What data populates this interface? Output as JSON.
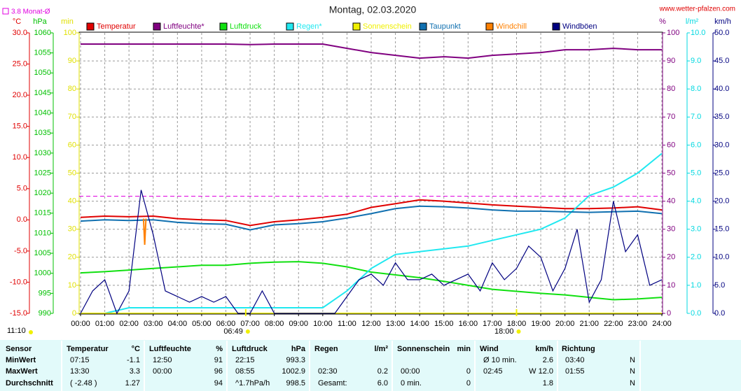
{
  "chart_data": {
    "type": "line",
    "title": "Montag, 02.03.2020",
    "source": "www.wetter-pfalzen.com",
    "grid": true,
    "reference": {
      "label": "3.8 Monat-Ø",
      "value": 3.8,
      "axis": 0,
      "color": "#e000e0"
    },
    "axes": [
      {
        "label": "°C",
        "color": "#e00000",
        "lim": [
          -15,
          30
        ],
        "ticks": [
          {
            "value": 30,
            "label": "30.0"
          },
          {
            "value": 25,
            "label": "25.0"
          },
          {
            "value": 20,
            "label": "20.0"
          },
          {
            "value": 15,
            "label": "15.0"
          },
          {
            "value": 10,
            "label": "10.0"
          },
          {
            "value": 5,
            "label": "5.0"
          },
          {
            "value": 0,
            "label": "0.0"
          },
          {
            "value": -5,
            "label": "-5.0"
          },
          {
            "value": -10,
            "label": "-10.0"
          },
          {
            "value": -15,
            "label": "-15.0"
          }
        ]
      },
      {
        "label": "hPa",
        "color": "#00c000",
        "lim": [
          990,
          1060
        ],
        "ticks": [
          1060,
          1055,
          1050,
          1045,
          1040,
          1035,
          1030,
          1025,
          1020,
          1015,
          1010,
          1005,
          1000,
          995,
          990
        ]
      },
      {
        "label": "min",
        "color": "#e0e000",
        "lim": [
          0,
          100
        ],
        "ticks": [
          100,
          90,
          80,
          70,
          60,
          50,
          40,
          30,
          20,
          10,
          0
        ]
      },
      {
        "label": "%",
        "color": "#800080",
        "lim": [
          0,
          100
        ],
        "ticks": [
          100,
          90,
          80,
          70,
          60,
          50,
          40,
          30,
          20,
          10,
          0
        ]
      },
      {
        "label": "l/m²",
        "color": "#00d8e0",
        "lim": [
          0,
          10
        ],
        "ticks": [
          {
            "value": 10,
            "label": "10.0"
          },
          {
            "value": 9,
            "label": "9.0"
          },
          {
            "value": 8,
            "label": "8.0"
          },
          {
            "value": 7,
            "label": "7.0"
          },
          {
            "value": 6,
            "label": "6.0"
          },
          {
            "value": 5,
            "label": "5.0"
          },
          {
            "value": 4,
            "label": "4.0"
          },
          {
            "value": 3,
            "label": "3.0"
          },
          {
            "value": 2,
            "label": "2.0"
          },
          {
            "value": 1,
            "label": "1.0"
          },
          {
            "value": 0,
            "label": "0.0"
          }
        ]
      },
      {
        "label": "km/h",
        "color": "#000080",
        "lim": [
          0,
          50
        ],
        "ticks": [
          {
            "value": 50,
            "label": "50.0"
          },
          {
            "value": 45,
            "label": "45.0"
          },
          {
            "value": 40,
            "label": "40.0"
          },
          {
            "value": 35,
            "label": "35.0"
          },
          {
            "value": 30,
            "label": "30.0"
          },
          {
            "value": 25,
            "label": "25.0"
          },
          {
            "value": 20,
            "label": "20.0"
          },
          {
            "value": 15,
            "label": "15.0"
          },
          {
            "value": 10,
            "label": "10.0"
          },
          {
            "value": 5,
            "label": "5.0"
          },
          {
            "value": 0,
            "label": "0.0"
          }
        ]
      }
    ],
    "xlim": [
      0,
      24
    ],
    "xticks": [
      {
        "value": 0,
        "label": "00:00"
      },
      {
        "value": 1,
        "label": "01:00"
      },
      {
        "value": 2,
        "label": "02:00"
      },
      {
        "value": 3,
        "label": "03:00"
      },
      {
        "value": 4,
        "label": "04:00"
      },
      {
        "value": 5,
        "label": "05:00"
      },
      {
        "value": 6,
        "label": "06:00"
      },
      {
        "value": 7,
        "label": "07:00"
      },
      {
        "value": 8,
        "label": "08:00"
      },
      {
        "value": 9,
        "label": "09:00"
      },
      {
        "value": 10,
        "label": "10:00"
      },
      {
        "value": 11,
        "label": "11:00"
      },
      {
        "value": 12,
        "label": "12:00"
      },
      {
        "value": 13,
        "label": "13:00"
      },
      {
        "value": 14,
        "label": "14:00"
      },
      {
        "value": 15,
        "label": "15:00"
      },
      {
        "value": 16,
        "label": "16:00"
      },
      {
        "value": 17,
        "label": "17:00"
      },
      {
        "value": 18,
        "label": "18:00"
      },
      {
        "value": 19,
        "label": "19:00"
      },
      {
        "value": 20,
        "label": "20:00"
      },
      {
        "value": 21,
        "label": "21:00"
      },
      {
        "value": 22,
        "label": "22:00"
      },
      {
        "value": 23,
        "label": "23:00"
      },
      {
        "value": 24,
        "label": "24:00"
      }
    ],
    "x": [
      0,
      1,
      2,
      3,
      4,
      5,
      6,
      7,
      8,
      9,
      10,
      11,
      12,
      13,
      14,
      15,
      16,
      17,
      18,
      19,
      20,
      21,
      22,
      23,
      24
    ],
    "series": [
      {
        "name": "Temperatur",
        "color": "#e00000",
        "axis": 0,
        "values": [
          0.4,
          0.6,
          0.5,
          0.6,
          0.2,
          0.0,
          -0.1,
          -0.9,
          -0.3,
          0.0,
          0.4,
          0.9,
          2.0,
          2.6,
          3.2,
          3.0,
          2.7,
          2.4,
          2.2,
          2.0,
          1.8,
          1.8,
          1.9,
          2.1,
          1.6
        ]
      },
      {
        "name": "Luftfeuchte*",
        "color": "#800080",
        "axis": 3,
        "values": [
          96,
          96,
          96,
          96,
          96,
          96,
          96,
          95.8,
          96,
          96,
          96,
          94.5,
          93,
          92,
          91,
          91.5,
          91,
          92,
          92.5,
          93,
          94,
          94,
          94.5,
          94,
          94
        ]
      },
      {
        "name": "Luftdruck",
        "color": "#10e010",
        "axis": 1,
        "values": [
          1000.1,
          1000.4,
          1000.8,
          1001.2,
          1001.6,
          1002.0,
          1002.0,
          1002.5,
          1002.8,
          1002.9,
          1002.5,
          1001.6,
          1000.3,
          999.6,
          998.9,
          998.0,
          997.0,
          996.0,
          995.5,
          995.0,
          994.6,
          994.0,
          993.4,
          993.6,
          994.0
        ]
      },
      {
        "name": "Regen*",
        "color": "#20e8f0",
        "axis": 4,
        "values": [
          0,
          0,
          0.2,
          0.2,
          0.2,
          0.2,
          0.2,
          0.2,
          0.2,
          0.2,
          0.2,
          0.8,
          1.6,
          2.1,
          2.2,
          2.3,
          2.4,
          2.6,
          2.8,
          3.0,
          3.4,
          4.2,
          4.5,
          5.0,
          5.7
        ]
      },
      {
        "name": "Sonnenschein",
        "color": "#f0f000",
        "axis": 2,
        "values": [
          0,
          0,
          0,
          0,
          0,
          0,
          0,
          0,
          0,
          0,
          0,
          0,
          0,
          0,
          0,
          0,
          0,
          0,
          0,
          0,
          0,
          0,
          0,
          0,
          0
        ]
      },
      {
        "name": "Taupunkt",
        "color": "#1070b0",
        "axis": 0,
        "values": [
          -0.2,
          0.0,
          -0.1,
          0.0,
          -0.4,
          -0.6,
          -0.7,
          -1.6,
          -0.8,
          -0.6,
          -0.3,
          0.3,
          1.0,
          1.8,
          2.2,
          2.1,
          1.9,
          1.6,
          1.4,
          1.4,
          1.3,
          1.2,
          1.3,
          1.4,
          1.0
        ]
      },
      {
        "name": "Windchill",
        "color": "#ff8000",
        "axis": 0,
        "x": [
          2.6,
          2.65,
          2.7
        ],
        "values": [
          0.2,
          -4.0,
          0.2
        ]
      },
      {
        "name": "Windböen",
        "color": "#000080",
        "axis": 5,
        "x": [
          0,
          0.5,
          1,
          1.5,
          2,
          2.5,
          3,
          3.5,
          4,
          4.5,
          5,
          5.5,
          6,
          6.5,
          7,
          7.5,
          8,
          8.5,
          9,
          9.5,
          10,
          10.5,
          11,
          11.5,
          12,
          12.5,
          13,
          13.5,
          14,
          14.5,
          15,
          15.5,
          16,
          16.5,
          17,
          17.5,
          18,
          18.5,
          19,
          19.5,
          20,
          20.5,
          21,
          21.5,
          22,
          22.5,
          23,
          23.5,
          24
        ],
        "values": [
          0,
          4,
          6,
          0,
          4,
          22,
          14,
          4,
          3,
          2,
          3,
          2,
          3,
          0,
          0,
          4,
          0,
          0,
          0,
          0,
          0,
          0,
          3,
          6,
          7,
          5,
          9,
          6,
          6,
          7,
          5,
          6,
          7,
          4,
          9,
          6,
          8,
          12,
          10,
          4,
          8,
          15,
          2,
          6,
          20,
          11,
          14,
          5,
          6
        ]
      }
    ],
    "sun": [
      {
        "label": "06:49",
        "x": 6.82
      },
      {
        "label": "18:00",
        "x": 18
      }
    ],
    "sunshine_total": "11:10"
  },
  "table": {
    "sensor": "Sensor",
    "columns": [
      {
        "name": "Temperatur",
        "unit": "°C"
      },
      {
        "name": "Luftfeuchte",
        "unit": "%"
      },
      {
        "name": "Luftdruck",
        "unit": "hPa"
      },
      {
        "name": "Regen",
        "unit": "l/m²"
      },
      {
        "name": "Sonnenschein",
        "unit": "min"
      },
      {
        "name": "Wind",
        "unit": "km/h"
      },
      {
        "name": "Richtung",
        "unit": null
      }
    ],
    "rows": [
      {
        "label": "MinWert",
        "cells": [
          [
            "07:15",
            "-1.1"
          ],
          [
            "12:50",
            "91"
          ],
          [
            "22:15",
            "993.3"
          ],
          [
            null,
            null
          ],
          [
            null,
            null
          ],
          [
            "Ø 10 min.",
            "2.6"
          ],
          [
            "03:40",
            "N"
          ]
        ]
      },
      {
        "label": "MaxWert",
        "cells": [
          [
            "13:30",
            "3.3"
          ],
          [
            "00:00",
            "96"
          ],
          [
            "08:55",
            "1002.9"
          ],
          [
            "02:30",
            "0.2"
          ],
          [
            "00:00",
            "0"
          ],
          [
            "02:45",
            "W 12.0"
          ],
          [
            "01:55",
            "N"
          ]
        ]
      },
      {
        "label": "Durchschnitt",
        "cells": [
          [
            "( -2.48 )",
            "1.27"
          ],
          [
            null,
            "94"
          ],
          [
            "^1.7hPa/h",
            "998.5"
          ],
          [
            "Gesamt:",
            "6.0"
          ],
          [
            "0 min.",
            "0"
          ],
          [
            null,
            "1.8"
          ],
          [
            null,
            "N"
          ]
        ]
      }
    ]
  }
}
